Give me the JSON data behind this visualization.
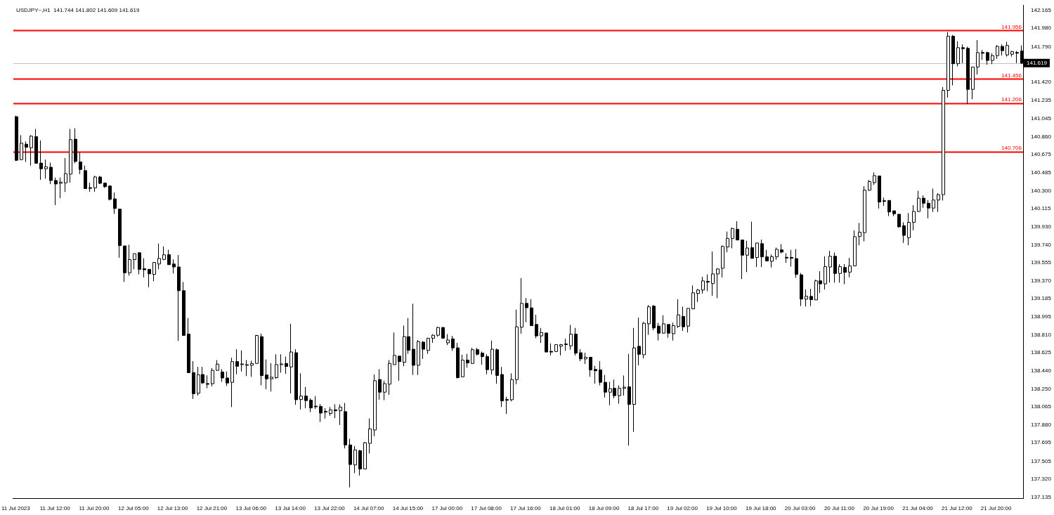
{
  "chart_data": {
    "type": "candlestick",
    "title": "USDJPY~,H1  141.744 141.802 141.609 141.619",
    "color": "#000000",
    "grid": false,
    "legend": false,
    "categories": [
      "11 Jul 2023",
      null,
      null,
      null,
      null,
      null,
      null,
      null,
      "11 Jul 12:00",
      null,
      null,
      null,
      null,
      null,
      null,
      null,
      "11 Jul 20:00",
      null,
      null,
      null,
      null,
      null,
      null,
      null,
      "12 Jul 05:00",
      null,
      null,
      null,
      null,
      null,
      null,
      null,
      "12 Jul 13:00",
      null,
      null,
      null,
      null,
      null,
      null,
      null,
      "12 Jul 21:00",
      null,
      null,
      null,
      null,
      null,
      null,
      null,
      "13 Jul 06:00",
      null,
      null,
      null,
      null,
      null,
      null,
      null,
      "13 Jul 14:00",
      null,
      null,
      null,
      null,
      null,
      null,
      null,
      "13 Jul 22:00",
      null,
      null,
      null,
      null,
      null,
      null,
      null,
      "14 Jul 07:00",
      null,
      null,
      null,
      null,
      null,
      null,
      null,
      "14 Jul 15:00",
      null,
      null,
      null,
      null,
      null,
      null,
      null,
      "17 Jul 00:00",
      null,
      null,
      null,
      null,
      null,
      null,
      null,
      "17 Jul 08:00",
      null,
      null,
      null,
      null,
      null,
      null,
      null,
      "17 Jul 16:00",
      null,
      null,
      null,
      null,
      null,
      null,
      null,
      "18 Jul 01:00",
      null,
      null,
      null,
      null,
      null,
      null,
      null,
      "18 Jul 09:00",
      null,
      null,
      null,
      null,
      null,
      null,
      null,
      "18 Jul 17:00",
      null,
      null,
      null,
      null,
      null,
      null,
      null,
      "19 Jul 02:00",
      null,
      null,
      null,
      null,
      null,
      null,
      null,
      "19 Jul 10:00",
      null,
      null,
      null,
      null,
      null,
      null,
      null,
      "19 Jul 18:00",
      null,
      null,
      null,
      null,
      null,
      null,
      null,
      "20 Jul 03:00",
      null,
      null,
      null,
      null,
      null,
      null,
      null,
      "20 Jul 11:00",
      null,
      null,
      null,
      null,
      null,
      null,
      null,
      "20 Jul 19:00",
      null,
      null,
      null,
      null,
      null,
      null,
      null,
      "21 Jul 04:00",
      null,
      null,
      null,
      null,
      null,
      null,
      null,
      "21 Jul 12:00",
      null,
      null,
      null,
      null,
      null,
      null,
      null,
      "21 Jul 20:00",
      null,
      null,
      null,
      null,
      null
    ],
    "ohlc": [
      [
        141.065,
        141.077,
        140.607,
        140.615
      ],
      [
        140.622,
        140.875,
        140.615,
        140.792
      ],
      [
        140.781,
        140.809,
        140.598,
        140.75
      ],
      [
        140.745,
        140.875,
        140.56,
        140.864
      ],
      [
        140.859,
        140.939,
        140.579,
        140.584
      ],
      [
        140.586,
        140.821,
        140.413,
        140.527
      ],
      [
        140.527,
        140.622,
        140.425,
        140.548
      ],
      [
        140.543,
        140.591,
        140.37,
        140.406
      ],
      [
        140.406,
        140.437,
        140.152,
        140.37
      ],
      [
        140.377,
        140.437,
        140.223,
        140.389
      ],
      [
        140.382,
        140.638,
        140.287,
        140.477
      ],
      [
        140.472,
        140.939,
        140.384,
        140.828
      ],
      [
        140.833,
        140.946,
        140.584,
        140.603
      ],
      [
        140.598,
        140.698,
        140.472,
        140.52
      ],
      [
        140.508,
        140.56,
        140.318,
        140.323
      ],
      [
        140.332,
        140.384,
        140.29,
        140.327
      ],
      [
        140.33,
        140.456,
        140.29,
        140.442
      ],
      [
        140.442,
        140.453,
        140.37,
        140.377
      ],
      [
        140.38,
        140.384,
        140.33,
        140.342
      ],
      [
        140.349,
        140.354,
        140.2,
        140.211
      ],
      [
        140.216,
        140.282,
        140.062,
        140.117
      ],
      [
        140.11,
        140.11,
        139.607,
        139.733
      ],
      [
        139.73,
        139.73,
        139.358,
        139.452
      ],
      [
        139.452,
        139.742,
        139.422,
        139.588
      ],
      [
        139.588,
        139.65,
        139.488,
        139.65
      ],
      [
        139.659,
        139.666,
        139.436,
        139.488
      ],
      [
        139.495,
        139.602,
        139.405,
        139.483
      ],
      [
        139.488,
        139.488,
        139.303,
        139.441
      ],
      [
        139.436,
        139.559,
        139.365,
        139.559
      ],
      [
        139.543,
        139.754,
        139.488,
        139.6
      ],
      [
        139.59,
        139.725,
        139.583,
        139.638
      ],
      [
        139.64,
        139.69,
        139.536,
        139.536
      ],
      [
        139.543,
        139.59,
        139.445,
        139.512
      ],
      [
        139.512,
        139.635,
        138.748,
        139.267
      ],
      [
        139.267,
        139.357,
        138.805,
        138.805
      ],
      [
        138.819,
        138.985,
        138.42,
        138.42
      ],
      [
        138.42,
        138.539,
        138.148,
        138.202
      ],
      [
        138.207,
        138.48,
        138.183,
        138.397
      ],
      [
        138.401,
        138.48,
        138.302,
        138.314
      ],
      [
        138.307,
        138.392,
        138.259,
        138.305
      ],
      [
        138.306,
        138.467,
        138.278,
        138.444
      ],
      [
        138.444,
        138.55,
        138.439,
        138.508
      ],
      [
        138.427,
        138.456,
        138.325,
        138.365
      ],
      [
        138.365,
        138.432,
        138.282,
        138.313
      ],
      [
        138.32,
        138.574,
        138.064,
        138.534
      ],
      [
        138.534,
        138.662,
        138.403,
        138.486
      ],
      [
        138.503,
        138.65,
        138.432,
        138.51
      ],
      [
        138.501,
        138.55,
        138.384,
        138.503
      ],
      [
        138.496,
        138.543,
        138.377,
        138.515
      ],
      [
        138.515,
        138.811,
        138.51,
        138.804
      ],
      [
        138.792,
        138.823,
        138.289,
        138.389
      ],
      [
        138.396,
        138.557,
        138.249,
        138.356
      ],
      [
        138.356,
        138.519,
        138.225,
        138.373
      ],
      [
        138.368,
        138.61,
        138.356,
        138.503
      ],
      [
        138.508,
        138.61,
        138.42,
        138.51
      ],
      [
        138.515,
        138.586,
        138.408,
        138.484
      ],
      [
        138.479,
        138.925,
        138.206,
        138.633
      ],
      [
        138.626,
        138.662,
        138.088,
        138.14
      ],
      [
        138.142,
        138.413,
        138.04,
        138.178
      ],
      [
        138.178,
        138.273,
        138.052,
        138.131
      ],
      [
        138.135,
        138.154,
        138.012,
        138.055
      ],
      [
        138.074,
        138.178,
        138.045,
        138.072
      ],
      [
        138.071,
        138.095,
        137.91,
        138.002
      ],
      [
        138.02,
        138.052,
        137.946,
        138.017
      ],
      [
        137.998,
        138.064,
        137.974,
        138.036
      ],
      [
        138.036,
        138.093,
        137.95,
        138.026
      ],
      [
        138.026,
        138.093,
        137.879,
        138.064
      ],
      [
        138.017,
        138.107,
        137.637,
        137.673
      ],
      [
        137.673,
        137.737,
        137.234,
        137.471
      ],
      [
        137.466,
        137.661,
        137.381,
        137.621
      ],
      [
        137.613,
        137.621,
        137.357,
        137.424
      ],
      [
        137.424,
        137.703,
        137.424,
        137.696
      ],
      [
        137.689,
        137.946,
        137.585,
        137.839
      ],
      [
        137.827,
        138.401,
        137.763,
        138.337
      ],
      [
        138.349,
        138.456,
        138.14,
        138.218
      ],
      [
        138.218,
        138.337,
        138.135,
        138.306
      ],
      [
        138.301,
        138.55,
        138.19,
        138.515
      ],
      [
        138.503,
        138.835,
        138.503,
        138.598
      ],
      [
        138.591,
        138.591,
        138.337,
        138.534
      ],
      [
        138.527,
        138.906,
        138.486,
        138.792
      ],
      [
        138.792,
        138.984,
        138.614,
        138.652
      ],
      [
        138.662,
        139.132,
        138.396,
        138.496
      ],
      [
        138.496,
        138.757,
        138.396,
        138.74
      ],
      [
        138.735,
        138.747,
        138.562,
        138.662
      ],
      [
        138.65,
        138.78,
        138.614,
        138.776
      ],
      [
        138.776,
        138.816,
        138.728,
        138.807
      ],
      [
        138.807,
        138.894,
        138.792,
        138.887
      ],
      [
        138.887,
        138.887,
        138.776,
        138.776
      ],
      [
        138.728,
        138.818,
        138.705,
        138.757
      ],
      [
        138.769,
        138.8,
        138.645,
        138.676
      ],
      [
        138.676,
        138.728,
        138.361,
        138.368
      ],
      [
        138.377,
        138.605,
        138.373,
        138.55
      ],
      [
        138.55,
        138.614,
        138.472,
        138.52
      ],
      [
        138.515,
        138.676,
        138.515,
        138.657
      ],
      [
        138.657,
        138.676,
        138.598,
        138.61
      ],
      [
        138.622,
        138.638,
        138.503,
        138.586
      ],
      [
        138.586,
        138.61,
        138.403,
        138.451
      ],
      [
        138.448,
        138.752,
        138.401,
        138.662
      ],
      [
        138.657,
        138.669,
        138.306,
        138.391
      ],
      [
        138.401,
        138.479,
        138.064,
        138.128
      ],
      [
        138.142,
        138.171,
        137.993,
        138.138
      ],
      [
        138.14,
        138.413,
        138.123,
        138.349
      ],
      [
        138.349,
        139.072,
        138.301,
        138.894
      ],
      [
        138.89,
        139.397,
        138.823,
        139.136
      ],
      [
        139.136,
        139.191,
        138.942,
        139.091
      ],
      [
        139.089,
        139.179,
        138.906,
        138.906
      ],
      [
        138.918,
        139.018,
        138.776,
        138.8
      ],
      [
        138.8,
        138.882,
        138.728,
        138.835
      ],
      [
        138.83,
        138.83,
        138.633,
        138.633
      ],
      [
        138.64,
        138.721,
        138.598,
        138.636
      ],
      [
        138.638,
        138.709,
        138.638,
        138.709
      ],
      [
        138.693,
        138.716,
        138.598,
        138.709
      ],
      [
        138.716,
        138.771,
        138.645,
        138.717
      ],
      [
        138.697,
        138.913,
        138.657,
        138.818
      ],
      [
        138.818,
        138.882,
        138.598,
        138.622
      ],
      [
        138.626,
        138.662,
        138.538,
        138.562
      ],
      [
        138.562,
        138.626,
        138.51,
        138.579
      ],
      [
        138.579,
        138.579,
        138.377,
        138.448
      ],
      [
        138.453,
        138.491,
        138.306,
        138.439
      ],
      [
        138.448,
        138.538,
        138.289,
        138.32
      ],
      [
        138.32,
        138.396,
        138.163,
        138.218
      ],
      [
        138.218,
        138.325,
        138.083,
        138.254
      ],
      [
        138.258,
        138.348,
        138.154,
        138.182
      ],
      [
        138.182,
        138.289,
        138.099,
        138.258
      ],
      [
        138.258,
        138.391,
        138.182,
        138.27
      ],
      [
        138.273,
        138.614,
        137.665,
        138.092
      ],
      [
        138.092,
        138.882,
        137.808,
        138.676
      ],
      [
        138.692,
        138.989,
        138.496,
        138.61
      ],
      [
        138.605,
        138.946,
        138.567,
        138.93
      ],
      [
        138.925,
        139.119,
        138.811,
        139.1
      ],
      [
        139.107,
        139.119,
        138.858,
        138.882
      ],
      [
        138.901,
        138.934,
        138.752,
        138.828
      ],
      [
        138.828,
        139.013,
        138.823,
        138.925
      ],
      [
        138.918,
        138.918,
        138.78,
        138.828
      ],
      [
        138.823,
        138.937,
        138.752,
        138.906
      ],
      [
        138.899,
        139.179,
        138.882,
        139.017
      ],
      [
        139.001,
        139.103,
        138.851,
        138.894
      ],
      [
        138.901,
        139.089,
        138.835,
        139.084
      ],
      [
        139.079,
        139.321,
        139.079,
        139.245
      ],
      [
        139.238,
        139.285,
        139.15,
        139.274
      ],
      [
        139.274,
        139.411,
        139.238,
        139.368
      ],
      [
        139.363,
        139.435,
        139.262,
        139.361
      ],
      [
        139.34,
        139.672,
        139.214,
        139.44
      ],
      [
        139.44,
        139.499,
        139.19,
        139.492
      ],
      [
        139.499,
        139.736,
        139.404,
        139.724
      ],
      [
        139.719,
        139.878,
        139.665,
        139.807
      ],
      [
        139.807,
        139.919,
        139.705,
        139.909
      ],
      [
        139.902,
        139.985,
        139.791,
        139.791
      ],
      [
        139.791,
        139.791,
        139.387,
        139.634
      ],
      [
        139.634,
        139.783,
        139.459,
        139.708
      ],
      [
        139.712,
        139.98,
        139.601,
        139.601
      ],
      [
        139.61,
        139.76,
        139.511,
        139.76
      ],
      [
        139.753,
        139.795,
        139.511,
        139.617
      ],
      [
        139.617,
        139.689,
        139.57,
        139.575
      ],
      [
        139.571,
        139.642,
        139.507,
        139.618
      ],
      [
        139.618,
        139.713,
        139.587,
        139.694
      ],
      [
        139.689,
        139.749,
        139.654,
        139.666
      ],
      [
        139.612,
        139.654,
        139.554,
        139.609
      ],
      [
        139.611,
        139.689,
        139.516,
        139.602
      ],
      [
        139.599,
        139.697,
        139.4,
        139.436
      ],
      [
        139.431,
        139.45,
        139.108,
        139.18
      ],
      [
        139.18,
        139.279,
        139.104,
        139.21
      ],
      [
        139.208,
        139.286,
        139.108,
        139.175
      ],
      [
        139.172,
        139.381,
        139.172,
        139.369
      ],
      [
        139.369,
        139.469,
        139.244,
        139.338
      ],
      [
        139.338,
        139.623,
        139.279,
        139.516
      ],
      [
        139.512,
        139.678,
        139.35,
        139.623
      ],
      [
        139.623,
        139.661,
        139.35,
        139.445
      ],
      [
        139.445,
        139.54,
        139.35,
        139.516
      ],
      [
        139.507,
        139.542,
        139.334,
        139.457
      ],
      [
        139.459,
        139.606,
        139.405,
        139.523
      ],
      [
        139.523,
        139.891,
        139.523,
        139.825
      ],
      [
        139.827,
        139.967,
        139.737,
        139.872
      ],
      [
        139.867,
        140.347,
        139.777,
        140.306
      ],
      [
        140.306,
        140.413,
        140.299,
        140.394
      ],
      [
        140.384,
        140.489,
        140.361,
        140.456
      ],
      [
        140.453,
        140.453,
        140.116,
        140.183
      ],
      [
        140.197,
        140.228,
        140.145,
        140.193
      ],
      [
        140.2,
        140.2,
        140.038,
        140.081
      ],
      [
        140.093,
        140.093,
        140.038,
        140.062
      ],
      [
        140.057,
        140.057,
        139.92,
        139.927
      ],
      [
        139.939,
        139.974,
        139.761,
        139.839
      ],
      [
        139.815,
        140.069,
        139.737,
        139.974
      ],
      [
        139.974,
        140.152,
        139.891,
        140.086
      ],
      [
        140.086,
        140.299,
        140.081,
        140.223
      ],
      [
        140.223,
        140.252,
        140.124,
        140.171
      ],
      [
        140.171,
        140.204,
        140.015,
        140.121
      ],
      [
        140.121,
        140.323,
        140.081,
        140.204
      ],
      [
        140.204,
        140.275,
        140.081,
        140.259
      ],
      [
        140.26,
        141.372,
        140.2,
        141.338
      ],
      [
        141.338,
        141.941,
        141.263,
        141.897
      ],
      [
        141.897,
        141.91,
        141.389,
        141.613
      ],
      [
        141.613,
        141.846,
        141.585,
        141.779
      ],
      [
        141.779,
        141.813,
        141.62,
        141.769
      ],
      [
        141.772,
        141.789,
        141.196,
        141.348
      ],
      [
        141.348,
        141.579,
        141.247,
        141.579
      ],
      [
        141.579,
        141.857,
        141.501,
        141.728
      ],
      [
        141.729,
        141.755,
        141.653,
        141.726
      ],
      [
        141.728,
        141.738,
        141.602,
        141.647
      ],
      [
        141.647,
        141.721,
        141.609,
        141.697
      ],
      [
        141.697,
        141.806,
        141.663,
        141.792
      ],
      [
        141.792,
        141.813,
        141.697,
        141.748
      ],
      [
        141.704,
        141.84,
        141.687,
        141.802
      ],
      [
        141.711,
        141.745,
        141.687,
        141.738
      ],
      [
        141.729,
        141.745,
        141.62,
        141.727
      ],
      [
        141.744,
        141.802,
        141.609,
        141.619
      ]
    ],
    "ylim": [
      137.12,
      142.215
    ],
    "yticks": [
      142.165,
      {
        "value": 141.98,
        "label": "141.980"
      },
      {
        "value": 141.79,
        "label": "141.790"
      },
      {
        "value": 141.42,
        "label": "141.420"
      },
      141.235,
      141.045,
      {
        "value": 140.86,
        "label": "140.860"
      },
      140.675,
      140.485,
      {
        "value": 140.3,
        "label": "140.300"
      },
      140.115,
      {
        "value": 139.93,
        "label": "139.930"
      },
      {
        "value": 139.74,
        "label": "139.740"
      },
      139.555,
      {
        "value": 139.37,
        "label": "139.370"
      },
      139.185,
      138.995,
      {
        "value": 138.81,
        "label": "138.810"
      },
      138.625,
      {
        "value": 138.44,
        "label": "138.440"
      },
      {
        "value": 138.25,
        "label": "138.250"
      },
      138.065,
      {
        "value": 137.88,
        "label": "137.880"
      },
      137.695,
      137.505,
      {
        "value": 137.32,
        "label": "137.320"
      },
      137.135
    ],
    "ref_lines": [
      {
        "axis": "y",
        "value": 141.956,
        "label": "141.956",
        "color": "#ff0000"
      },
      {
        "axis": "y",
        "value": 141.456,
        "label": "141.456",
        "color": "#ff0000"
      },
      {
        "axis": "y",
        "value": 141.206,
        "label": "141.206",
        "color": "#ff0000"
      },
      {
        "axis": "y",
        "value": 140.706,
        "label": "140.706",
        "color": "#ff0000"
      },
      {
        "axis": "y",
        "value": 141.619,
        "label": "141.619",
        "color": "#c0c0c0"
      }
    ]
  }
}
